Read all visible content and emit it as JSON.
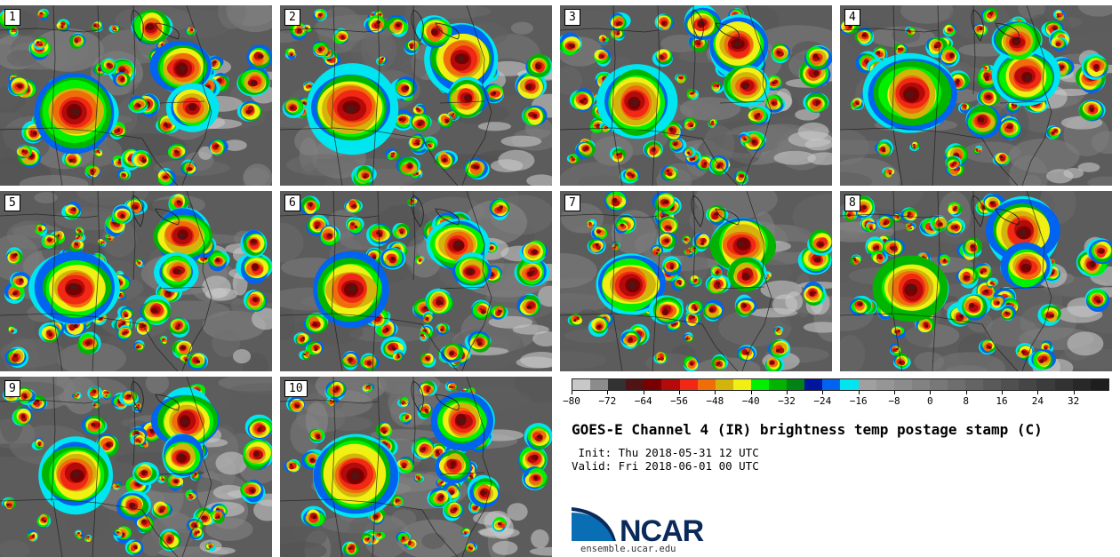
{
  "panels": [
    {
      "label": "1"
    },
    {
      "label": "2"
    },
    {
      "label": "3"
    },
    {
      "label": "4"
    },
    {
      "label": "5"
    },
    {
      "label": "6"
    },
    {
      "label": "7"
    },
    {
      "label": "8"
    },
    {
      "label": "9"
    },
    {
      "label": "10"
    }
  ],
  "colorbar": {
    "colors": [
      "#c8c8c8",
      "#8c8c8c",
      "#323232",
      "#501414",
      "#780000",
      "#b40a0a",
      "#f02814",
      "#f06e0a",
      "#d2b40a",
      "#f0f014",
      "#00f000",
      "#00b400",
      "#008214",
      "#0014a0",
      "#0064f0",
      "#00e6f0",
      "#a0a0a0",
      "#969696",
      "#8c8c8c",
      "#828282",
      "#787878",
      "#6e6e6e",
      "#646464",
      "#5a5a5a",
      "#505050",
      "#464646",
      "#3c3c3c",
      "#323232",
      "#282828",
      "#1e1e1e"
    ],
    "tick_labels": [
      "−80",
      "−72",
      "−64",
      "−56",
      "−48",
      "−40",
      "−32",
      "−24",
      "−16",
      "−8",
      "0",
      "8",
      "16",
      "24",
      "32"
    ]
  },
  "title": "GOES-E Channel 4 (IR) brightness temp postage stamp (C)",
  "init": " Init: Thu 2018-05-31 12 UTC",
  "valid": "Valid: Fri 2018-06-01 00 UTC",
  "logo_text": "NCAR",
  "website": "ensemble.ucar.edu"
}
